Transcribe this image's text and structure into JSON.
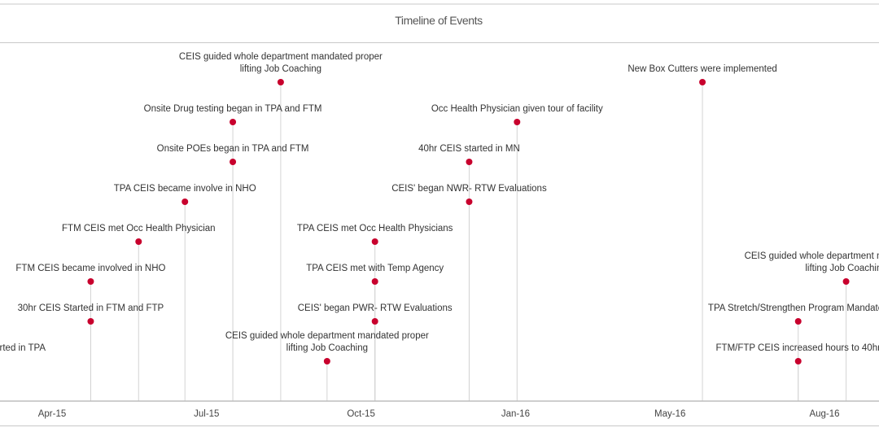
{
  "chart_data": {
    "type": "timeline",
    "title": "Timeline of Events",
    "x_tick_labels": [
      "Apr-15",
      "Jul-15",
      "Oct-15",
      "Jan-16",
      "May-16",
      "Aug-16"
    ],
    "marker_color": "#c8002d",
    "events": [
      {
        "date": "2015-02-23",
        "level": 1,
        "label": [
          "rted in TPA"
        ]
      },
      {
        "date": "2015-04-26",
        "level": 2,
        "label": [
          "30hr CEIS Started in FTM and FTP"
        ]
      },
      {
        "date": "2015-04-26",
        "level": 3,
        "label": [
          "FTM CEIS became involved in NHO"
        ]
      },
      {
        "date": "2015-05-27",
        "level": 4,
        "label": [
          "FTM CEIS met Occ Health Physician"
        ]
      },
      {
        "date": "2015-06-26",
        "level": 5,
        "label": [
          "TPA CEIS became involve in NHO"
        ]
      },
      {
        "date": "2015-07-27",
        "level": 6,
        "label": [
          "Onsite POEs began in TPA and FTM"
        ]
      },
      {
        "date": "2015-07-27",
        "level": 7,
        "label": [
          "Onsite Drug testing began in TPA and FTM"
        ]
      },
      {
        "date": "2015-08-27",
        "level": 8,
        "label": [
          "CEIS guided whole department mandated proper",
          "lifting Job Coaching"
        ]
      },
      {
        "date": "2015-09-26",
        "level": 1,
        "label": [
          "CEIS guided whole department mandated proper",
          "lifting Job Coaching"
        ]
      },
      {
        "date": "2015-10-27",
        "level": 2,
        "label": [
          "CEIS' began PWR- RTW Evaluations"
        ]
      },
      {
        "date": "2015-10-27",
        "level": 3,
        "label": [
          "TPA CEIS met with Temp Agency"
        ]
      },
      {
        "date": "2015-10-27",
        "level": 4,
        "label": [
          "TPA CEIS met Occ Health Physicians"
        ]
      },
      {
        "date": "2015-12-27",
        "level": 5,
        "label": [
          "CEIS' began NWR- RTW Evaluations"
        ]
      },
      {
        "date": "2015-12-27",
        "level": 6,
        "label": [
          "40hr CEIS started in MN"
        ]
      },
      {
        "date": "2016-01-27",
        "level": 7,
        "label": [
          "Occ Health Physician given tour of facility"
        ]
      },
      {
        "date": "2016-05-26",
        "level": 8,
        "label": [
          "New Box Cutters were implemented"
        ]
      },
      {
        "date": "2016-07-27",
        "level": 1,
        "label": [
          "FTM/FTP CEIS increased hours to 40hr"
        ]
      },
      {
        "date": "2016-07-27",
        "level": 2,
        "label": [
          "TPA Stretch/Strengthen Program Mandated"
        ]
      },
      {
        "date": "2016-08-27",
        "level": 3,
        "label": [
          "CEIS guided whole department mandated proper",
          "lifting Job Coaching"
        ]
      }
    ],
    "grid": false,
    "legend": "none"
  }
}
